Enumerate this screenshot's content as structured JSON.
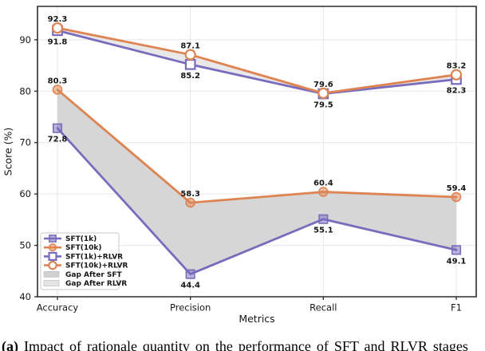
{
  "caption": {
    "prefix": "(a)",
    "text": " Impact of rationale quantity on the performance of SFT and RLVR stages"
  },
  "chart_data": {
    "type": "line",
    "title": "",
    "xlabel": "Metrics",
    "ylabel": "Score (%)",
    "categories": [
      "Accuracy",
      "Precision",
      "Recall",
      "F1"
    ],
    "ylim": [
      40,
      96.5
    ],
    "yticks": [
      40,
      50,
      60,
      70,
      80,
      90
    ],
    "grid": true,
    "legend_position": "lower-left",
    "colors": {
      "purple": "#7a6cbd",
      "orange": "#de8452",
      "gap_sft": "#cfcfcf",
      "gap_rlvr": "#dcdcdc",
      "axis": "#2b2b2b",
      "gridline": "#e7e7e7",
      "text": "#161616"
    },
    "series": [
      {
        "name": "SFT(1k)",
        "values": [
          72.8,
          44.4,
          55.1,
          49.1
        ],
        "color": "#7a6cbd",
        "marker": "square",
        "marker_fill": "solid",
        "label_side": "below"
      },
      {
        "name": "SFT(10k)",
        "values": [
          80.3,
          58.3,
          60.4,
          59.4
        ],
        "color": "#de8452",
        "marker": "circle",
        "marker_fill": "solid",
        "label_side": "above"
      },
      {
        "name": "SFT(1k)+RLVR",
        "values": [
          91.8,
          85.2,
          79.5,
          82.3
        ],
        "color": "#7a6cbd",
        "marker": "square",
        "marker_fill": "open",
        "label_side": "below"
      },
      {
        "name": "SFT(10k)+RLVR",
        "values": [
          92.3,
          87.1,
          79.6,
          83.2
        ],
        "color": "#de8452",
        "marker": "circle",
        "marker_fill": "open",
        "label_side": "above"
      }
    ],
    "bands": [
      {
        "name": "Gap After SFT",
        "upper": "SFT(10k)",
        "lower": "SFT(1k)",
        "color": "#cfcfcf",
        "opacity": 0.85
      },
      {
        "name": "Gap After RLVR",
        "upper": "SFT(10k)+RLVR",
        "lower": "SFT(1k)+RLVR",
        "color": "#dcdcdc",
        "opacity": 0.65
      }
    ]
  }
}
